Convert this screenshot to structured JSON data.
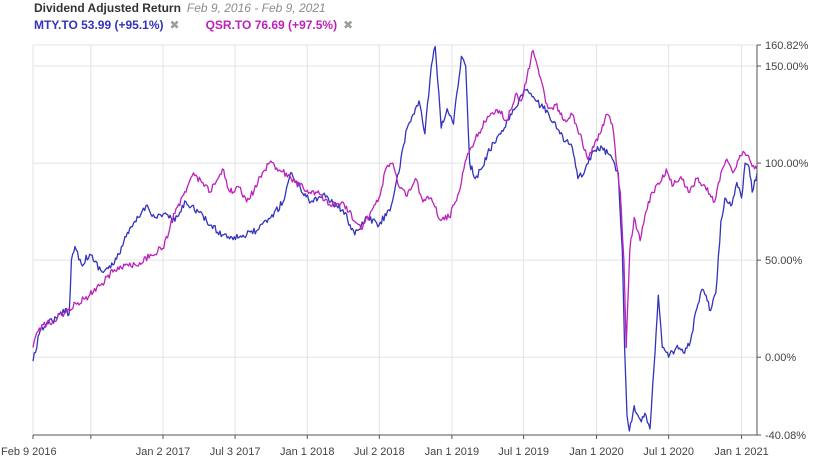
{
  "header": {
    "title": "Dividend Adjusted Return",
    "date_range": "Feb 9, 2016 - Feb 9, 2021",
    "remove_glyph": "✖"
  },
  "legend": [
    {
      "label": "MTY.TO 53.99 (+95.1%)",
      "color": "#3333bb"
    },
    {
      "label": "QSR.TO 76.69 (+97.5%)",
      "color": "#bb22bb"
    }
  ],
  "chart_data": {
    "type": "line",
    "title": "Dividend Adjusted Return",
    "subtitle": "Feb 9, 2016 - Feb 9, 2021",
    "xlabel": "",
    "ylabel": "",
    "xlim": [
      "2016-02-09",
      "2021-02-09"
    ],
    "ylim": [
      -40.08,
      160.82
    ],
    "y_ticks": [
      {
        "value": 160.82,
        "label": "160.82%"
      },
      {
        "value": 150,
        "label": "150.00%"
      },
      {
        "value": 100,
        "label": "100.00%"
      },
      {
        "value": 50,
        "label": "50.00%"
      },
      {
        "value": 0,
        "label": "0.00%"
      },
      {
        "value": -40.08,
        "label": "-40.08%"
      }
    ],
    "x_ticks": [
      {
        "date": "2016-02-09",
        "label": "Feb 9 2016"
      },
      {
        "date": "2016-07-04",
        "label": ""
      },
      {
        "date": "2017-01-02",
        "label": "Jan 2 2017"
      },
      {
        "date": "2017-07-03",
        "label": "Jul 3 2017"
      },
      {
        "date": "2018-01-01",
        "label": "Jan 1 2018"
      },
      {
        "date": "2018-07-02",
        "label": "Jul 2 2018"
      },
      {
        "date": "2019-01-01",
        "label": "Jan 1 2019"
      },
      {
        "date": "2019-07-01",
        "label": "Jul 1 2019"
      },
      {
        "date": "2020-01-01",
        "label": "Jan 1 2020"
      },
      {
        "date": "2020-07-01",
        "label": "Jul 1 2020"
      },
      {
        "date": "2021-01-01",
        "label": "Jan 1 2021"
      }
    ],
    "grid": true,
    "legend_position": "top-left",
    "series": [
      {
        "name": "MTY.TO",
        "color": "#3333bb",
        "points": [
          [
            "2016-02-09",
            -2
          ],
          [
            "2016-02-25",
            12
          ],
          [
            "2016-03-15",
            18
          ],
          [
            "2016-04-10",
            20
          ],
          [
            "2016-05-01",
            25
          ],
          [
            "2016-05-10",
            22
          ],
          [
            "2016-05-16",
            50
          ],
          [
            "2016-05-25",
            57
          ],
          [
            "2016-06-10",
            48
          ],
          [
            "2016-07-01",
            53
          ],
          [
            "2016-08-01",
            44
          ],
          [
            "2016-09-01",
            48
          ],
          [
            "2016-10-01",
            62
          ],
          [
            "2016-11-01",
            72
          ],
          [
            "2016-11-20",
            78
          ],
          [
            "2016-12-15",
            72
          ],
          [
            "2017-01-05",
            74
          ],
          [
            "2017-02-01",
            70
          ],
          [
            "2017-03-01",
            80
          ],
          [
            "2017-04-01",
            75
          ],
          [
            "2017-05-01",
            68
          ],
          [
            "2017-06-01",
            63
          ],
          [
            "2017-07-01",
            62
          ],
          [
            "2017-08-01",
            63
          ],
          [
            "2017-09-01",
            66
          ],
          [
            "2017-10-01",
            72
          ],
          [
            "2017-11-01",
            80
          ],
          [
            "2017-11-20",
            95
          ],
          [
            "2017-12-15",
            87
          ],
          [
            "2018-01-10",
            80
          ],
          [
            "2018-02-10",
            84
          ],
          [
            "2018-03-01",
            80
          ],
          [
            "2018-04-01",
            76
          ],
          [
            "2018-05-01",
            63
          ],
          [
            "2018-06-01",
            72
          ],
          [
            "2018-07-01",
            68
          ],
          [
            "2018-08-01",
            78
          ],
          [
            "2018-08-20",
            95
          ],
          [
            "2018-09-10",
            118
          ],
          [
            "2018-09-25",
            125
          ],
          [
            "2018-10-10",
            132
          ],
          [
            "2018-10-25",
            115
          ],
          [
            "2018-11-10",
            150
          ],
          [
            "2018-11-20",
            160
          ],
          [
            "2018-12-05",
            118
          ],
          [
            "2018-12-20",
            128
          ],
          [
            "2019-01-05",
            120
          ],
          [
            "2019-01-25",
            155
          ],
          [
            "2019-02-05",
            150
          ],
          [
            "2019-02-15",
            100
          ],
          [
            "2019-03-01",
            92
          ],
          [
            "2019-03-20",
            98
          ],
          [
            "2019-04-01",
            105
          ],
          [
            "2019-05-01",
            115
          ],
          [
            "2019-06-01",
            125
          ],
          [
            "2019-06-20",
            133
          ],
          [
            "2019-07-10",
            138
          ],
          [
            "2019-08-01",
            132
          ],
          [
            "2019-09-01",
            126
          ],
          [
            "2019-10-01",
            115
          ],
          [
            "2019-11-01",
            108
          ],
          [
            "2019-11-15",
            92
          ],
          [
            "2019-12-01",
            95
          ],
          [
            "2019-12-20",
            105
          ],
          [
            "2020-01-15",
            108
          ],
          [
            "2020-02-10",
            102
          ],
          [
            "2020-02-25",
            95
          ],
          [
            "2020-03-06",
            55
          ],
          [
            "2020-03-12",
            5
          ],
          [
            "2020-03-18",
            -30
          ],
          [
            "2020-03-24",
            -38
          ],
          [
            "2020-04-05",
            -25
          ],
          [
            "2020-04-20",
            -32
          ],
          [
            "2020-05-05",
            -30
          ],
          [
            "2020-05-15",
            -37
          ],
          [
            "2020-05-25",
            -5
          ],
          [
            "2020-06-05",
            32
          ],
          [
            "2020-06-15",
            5
          ],
          [
            "2020-07-01",
            0
          ],
          [
            "2020-07-20",
            5
          ],
          [
            "2020-08-10",
            2
          ],
          [
            "2020-08-25",
            8
          ],
          [
            "2020-09-10",
            25
          ],
          [
            "2020-09-25",
            35
          ],
          [
            "2020-10-15",
            24
          ],
          [
            "2020-10-28",
            33
          ],
          [
            "2020-11-10",
            70
          ],
          [
            "2020-11-20",
            82
          ],
          [
            "2020-12-05",
            78
          ],
          [
            "2020-12-20",
            90
          ],
          [
            "2021-01-01",
            82
          ],
          [
            "2021-01-10",
            100
          ],
          [
            "2021-01-20",
            98
          ],
          [
            "2021-01-28",
            85
          ],
          [
            "2021-02-09",
            95
          ]
        ]
      },
      {
        "name": "QSR.TO",
        "color": "#bb22bb",
        "points": [
          [
            "2016-02-09",
            5
          ],
          [
            "2016-02-25",
            15
          ],
          [
            "2016-03-15",
            17
          ],
          [
            "2016-04-10",
            20
          ],
          [
            "2016-05-01",
            23
          ],
          [
            "2016-06-01",
            28
          ],
          [
            "2016-07-01",
            32
          ],
          [
            "2016-08-01",
            38
          ],
          [
            "2016-09-01",
            45
          ],
          [
            "2016-10-01",
            48
          ],
          [
            "2016-11-01",
            47
          ],
          [
            "2016-12-01",
            53
          ],
          [
            "2017-01-01",
            56
          ],
          [
            "2017-02-01",
            74
          ],
          [
            "2017-03-01",
            85
          ],
          [
            "2017-03-20",
            95
          ],
          [
            "2017-04-10",
            90
          ],
          [
            "2017-05-01",
            85
          ],
          [
            "2017-06-01",
            97
          ],
          [
            "2017-06-20",
            85
          ],
          [
            "2017-07-10",
            88
          ],
          [
            "2017-08-01",
            80
          ],
          [
            "2017-08-20",
            86
          ],
          [
            "2017-09-10",
            95
          ],
          [
            "2017-10-01",
            101
          ],
          [
            "2017-10-25",
            96
          ],
          [
            "2017-11-15",
            94
          ],
          [
            "2017-12-01",
            90
          ],
          [
            "2018-01-01",
            86
          ],
          [
            "2018-02-01",
            84
          ],
          [
            "2018-03-01",
            78
          ],
          [
            "2018-04-01",
            80
          ],
          [
            "2018-05-01",
            70
          ],
          [
            "2018-05-20",
            66
          ],
          [
            "2018-06-10",
            75
          ],
          [
            "2018-07-01",
            82
          ],
          [
            "2018-07-20",
            98
          ],
          [
            "2018-08-05",
            100
          ],
          [
            "2018-08-20",
            88
          ],
          [
            "2018-09-10",
            83
          ],
          [
            "2018-10-01",
            92
          ],
          [
            "2018-10-20",
            80
          ],
          [
            "2018-11-10",
            82
          ],
          [
            "2018-12-01",
            71
          ],
          [
            "2018-12-25",
            72
          ],
          [
            "2019-01-10",
            80
          ],
          [
            "2019-01-25",
            90
          ],
          [
            "2019-02-10",
            105
          ],
          [
            "2019-03-01",
            112
          ],
          [
            "2019-04-01",
            124
          ],
          [
            "2019-05-01",
            127
          ],
          [
            "2019-05-20",
            122
          ],
          [
            "2019-06-10",
            135
          ],
          [
            "2019-06-25",
            132
          ],
          [
            "2019-07-10",
            145
          ],
          [
            "2019-07-25",
            158
          ],
          [
            "2019-08-10",
            145
          ],
          [
            "2019-09-01",
            128
          ],
          [
            "2019-09-20",
            130
          ],
          [
            "2019-10-10",
            122
          ],
          [
            "2019-11-01",
            125
          ],
          [
            "2019-11-20",
            115
          ],
          [
            "2019-12-10",
            102
          ],
          [
            "2019-12-25",
            108
          ],
          [
            "2020-01-10",
            115
          ],
          [
            "2020-01-25",
            125
          ],
          [
            "2020-02-10",
            120
          ],
          [
            "2020-02-20",
            100
          ],
          [
            "2020-03-01",
            85
          ],
          [
            "2020-03-10",
            50
          ],
          [
            "2020-03-16",
            5
          ],
          [
            "2020-03-25",
            55
          ],
          [
            "2020-04-05",
            72
          ],
          [
            "2020-04-20",
            60
          ],
          [
            "2020-05-05",
            75
          ],
          [
            "2020-05-20",
            85
          ],
          [
            "2020-06-10",
            90
          ],
          [
            "2020-06-25",
            97
          ],
          [
            "2020-07-10",
            88
          ],
          [
            "2020-08-01",
            93
          ],
          [
            "2020-08-20",
            85
          ],
          [
            "2020-09-10",
            92
          ],
          [
            "2020-10-01",
            88
          ],
          [
            "2020-10-25",
            80
          ],
          [
            "2020-11-10",
            95
          ],
          [
            "2020-11-25",
            102
          ],
          [
            "2020-12-10",
            95
          ],
          [
            "2020-12-25",
            102
          ],
          [
            "2021-01-05",
            106
          ],
          [
            "2021-01-15",
            104
          ],
          [
            "2021-01-25",
            100
          ],
          [
            "2021-02-09",
            97
          ]
        ]
      }
    ]
  }
}
